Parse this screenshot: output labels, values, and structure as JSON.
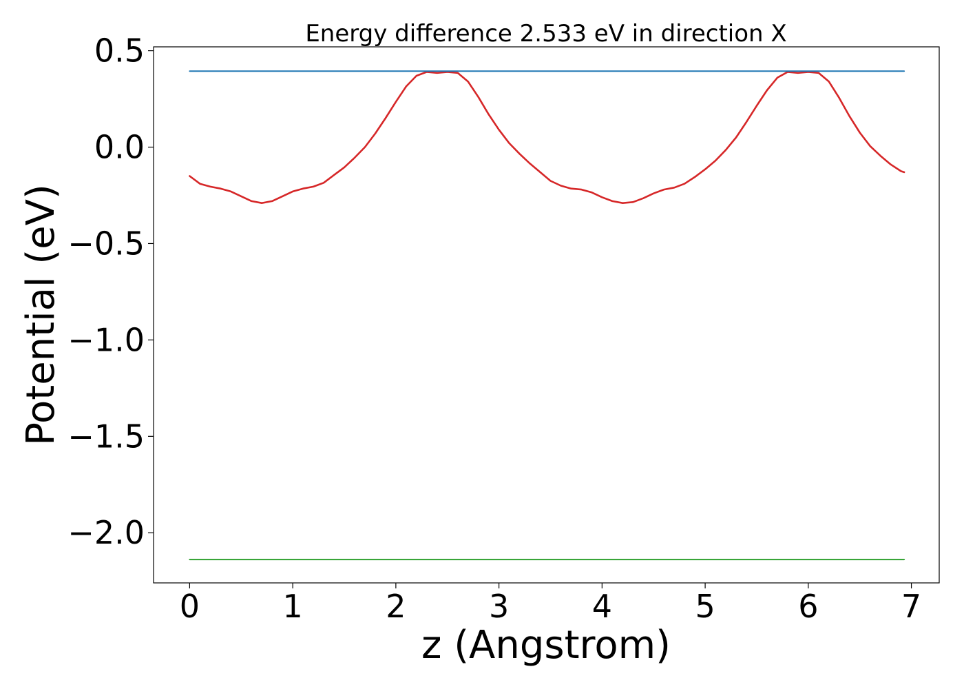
{
  "chart_data": {
    "type": "line",
    "title": "Energy difference 2.533 eV in direction X",
    "xlabel": "z (Angstrom)",
    "ylabel": "Potential (eV)",
    "xlim": [
      -0.35,
      7.27
    ],
    "ylim": [
      -2.26,
      0.52
    ],
    "xticks": [
      0,
      1,
      2,
      3,
      4,
      5,
      6,
      7
    ],
    "xtick_labels": [
      "0",
      "1",
      "2",
      "3",
      "4",
      "5",
      "6",
      "7"
    ],
    "yticks": [
      0.5,
      0.0,
      -0.5,
      -1.0,
      -1.5,
      -2.0
    ],
    "ytick_labels": [
      "0.5",
      "0.0",
      "−0.5",
      "−1.0",
      "−1.5",
      "−2.0"
    ],
    "grid": false,
    "series": [
      {
        "color": "#d62728",
        "x": [
          0.0,
          0.1,
          0.2,
          0.3,
          0.4,
          0.5,
          0.6,
          0.7,
          0.8,
          0.9,
          1.0,
          1.1,
          1.2,
          1.3,
          1.4,
          1.5,
          1.6,
          1.7,
          1.8,
          1.9,
          2.0,
          2.1,
          2.2,
          2.3,
          2.4,
          2.5,
          2.6,
          2.7,
          2.8,
          2.9,
          3.0,
          3.1,
          3.2,
          3.3,
          3.4,
          3.5,
          3.6,
          3.7,
          3.8,
          3.9,
          4.0,
          4.1,
          4.2,
          4.3,
          4.4,
          4.5,
          4.6,
          4.7,
          4.8,
          4.9,
          5.0,
          5.1,
          5.2,
          5.3,
          5.4,
          5.5,
          5.6,
          5.7,
          5.8,
          5.9,
          6.0,
          6.1,
          6.2,
          6.3,
          6.4,
          6.5,
          6.6,
          6.7,
          6.8,
          6.9,
          6.93
        ],
        "y": [
          -0.15,
          -0.19,
          -0.205,
          -0.215,
          -0.23,
          -0.255,
          -0.28,
          -0.29,
          -0.28,
          -0.255,
          -0.23,
          -0.215,
          -0.205,
          -0.185,
          -0.145,
          -0.105,
          -0.055,
          0.0,
          0.07,
          0.15,
          0.235,
          0.315,
          0.37,
          0.39,
          0.385,
          0.39,
          0.385,
          0.34,
          0.26,
          0.17,
          0.09,
          0.02,
          -0.035,
          -0.085,
          -0.13,
          -0.175,
          -0.2,
          -0.215,
          -0.22,
          -0.235,
          -0.26,
          -0.28,
          -0.29,
          -0.285,
          -0.265,
          -0.24,
          -0.22,
          -0.21,
          -0.19,
          -0.155,
          -0.115,
          -0.07,
          -0.015,
          0.05,
          0.13,
          0.215,
          0.295,
          0.36,
          0.39,
          0.385,
          0.39,
          0.385,
          0.34,
          0.255,
          0.16,
          0.075,
          0.005,
          -0.045,
          -0.09,
          -0.125,
          -0.13
        ]
      },
      {
        "color": "#1f77b4",
        "x": [
          0.0,
          6.93
        ],
        "y": [
          0.394,
          0.394
        ]
      },
      {
        "color": "#2ca02c",
        "x": [
          0.0,
          6.93
        ],
        "y": [
          -2.139,
          -2.139
        ]
      }
    ]
  }
}
